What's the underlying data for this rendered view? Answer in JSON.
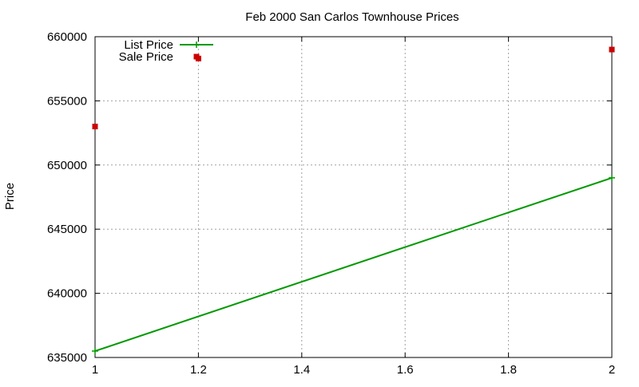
{
  "chart_data": {
    "type": "line",
    "title": "Feb 2000 San Carlos Townhouse Prices",
    "xlabel": "",
    "ylabel": "Price",
    "xlim": [
      1,
      2
    ],
    "ylim": [
      635000,
      660000
    ],
    "x_ticks": [
      1,
      1.2,
      1.4,
      1.6,
      1.8,
      2
    ],
    "x_tick_labels": [
      "1",
      "1.2",
      "1.4",
      "1.6",
      "1.8",
      "2"
    ],
    "y_ticks": [
      635000,
      640000,
      645000,
      650000,
      655000,
      660000
    ],
    "y_tick_labels": [
      "635000",
      "640000",
      "645000",
      "650000",
      "655000",
      "660000"
    ],
    "grid": true,
    "legend_position": "top-left",
    "series": [
      {
        "name": "List Price",
        "style": "lines+points",
        "color": "#009900",
        "points": [
          {
            "x": 1,
            "y": 635500
          },
          {
            "x": 2,
            "y": 649000
          }
        ]
      },
      {
        "name": "Sale Price",
        "style": "points",
        "color": "#cc0000",
        "points": [
          {
            "x": 1,
            "y": 653000
          },
          {
            "x": 1.2,
            "y": 658300
          },
          {
            "x": 2,
            "y": 659000
          }
        ]
      }
    ]
  }
}
